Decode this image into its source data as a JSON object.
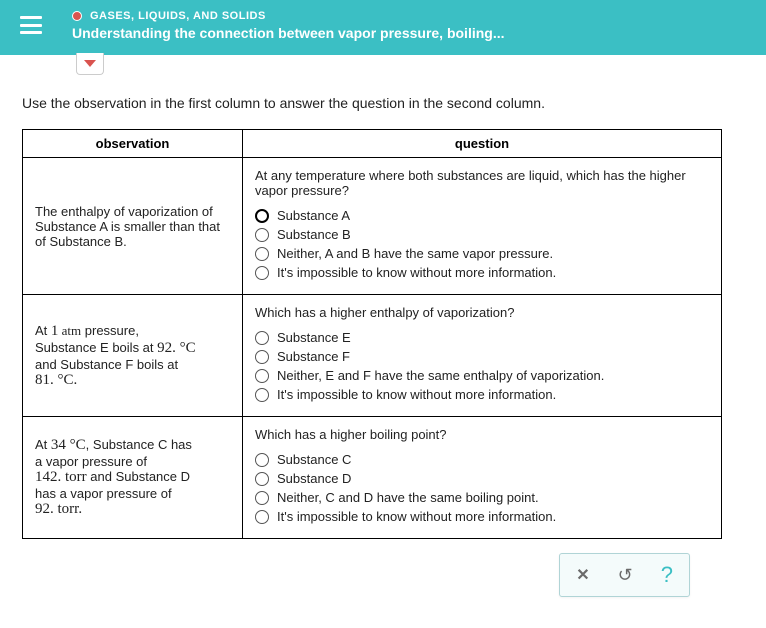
{
  "header": {
    "category": "GASES, LIQUIDS, AND SOLIDS",
    "title": "Understanding the connection between vapor pressure, boiling..."
  },
  "instruction": "Use the observation in the first column to answer the question in the second column.",
  "table": {
    "headers": {
      "observation": "observation",
      "question": "question"
    },
    "rows": [
      {
        "observation_html": "The enthalpy of vaporization of Substance A is smaller than that of Substance B.",
        "question": "At any temperature where both substances are liquid, which has the higher vapor pressure?",
        "options": [
          "Substance A",
          "Substance B",
          "Neither, A and B have the same vapor pressure.",
          "It's impossible to know without more information."
        ],
        "bold_first": true
      },
      {
        "observation_lines": {
          "l1a": "At ",
          "l1b": "1",
          "l1c": " atm",
          "l1d": " pressure,",
          "l2a": "Substance E boils at ",
          "l2b": "92. °C",
          "l3a": "and Substance F boils at",
          "l4a": "81. °C."
        },
        "question": "Which has a higher enthalpy of vaporization?",
        "options": [
          "Substance E",
          "Substance F",
          "Neither, E and F have the same enthalpy of vaporization.",
          "It's impossible to know without more information."
        ],
        "bold_first": false
      },
      {
        "observation_lines": {
          "l1a": "At ",
          "l1b": "34 °C",
          "l1c": ", Substance C has",
          "l2a": "a vapor pressure of",
          "l3a": "142. torr",
          "l3b": " and Substance D",
          "l4a": "has a vapor pressure of",
          "l5a": "92. torr."
        },
        "question": "Which has a higher boiling point?",
        "options": [
          "Substance C",
          "Substance D",
          "Neither, C and D have the same boiling point.",
          "It's impossible to know without more information."
        ],
        "bold_first": false
      }
    ]
  },
  "footer": {
    "close": "✕",
    "reset": "↺",
    "help": "?"
  },
  "colors": {
    "header_bg": "#3bbfc4",
    "accent_red": "#d9534f",
    "border": "#000000",
    "footer_border": "#b0d4d6",
    "footer_bg": "#f4fbfb",
    "text": "#222222"
  }
}
